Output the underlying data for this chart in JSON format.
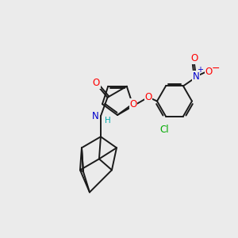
{
  "background_color": "#ebebeb",
  "bond_color": "#1a1a1a",
  "atom_colors": {
    "O": "#ff0000",
    "N": "#0000cc",
    "Cl": "#00aa00",
    "H": "#00aaaa",
    "C": "#1a1a1a"
  },
  "figsize": [
    3.0,
    3.0
  ],
  "dpi": 100
}
